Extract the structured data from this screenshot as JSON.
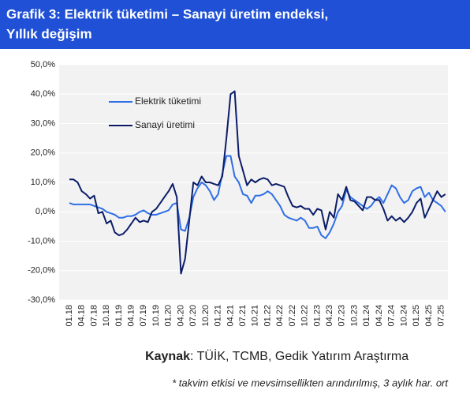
{
  "chart_data": {
    "type": "line",
    "title_lines": [
      "Grafik 3: Elektrik tüketimi – Sanayi üretim endeksi,",
      "Yıllık değişim"
    ],
    "categories": [
      "01.18",
      null,
      null,
      "04.18",
      null,
      null,
      "07.18",
      null,
      null,
      "10.18",
      null,
      null,
      "01.19",
      null,
      null,
      "04.19",
      null,
      null,
      "07.19",
      null,
      null,
      "10.19",
      null,
      null,
      "01.20",
      null,
      null,
      "04.20",
      null,
      null,
      "07.20",
      null,
      null,
      "10.20",
      null,
      null,
      "01.21",
      null,
      null,
      "04.21",
      null,
      null,
      "07.21",
      null,
      null,
      "10.21",
      null,
      null,
      "01.22",
      null,
      null,
      "04.22",
      null,
      null,
      "07.22",
      null,
      null,
      "10.22",
      null,
      null,
      "01.23",
      null,
      null,
      "04.23",
      null,
      null,
      "07.23",
      null,
      null,
      "10.23",
      null,
      null,
      "01.24",
      null,
      null,
      "04.24",
      null,
      null,
      "07.24",
      null,
      null,
      "10.24",
      null,
      null,
      "01.25",
      null,
      null,
      "04.25",
      null,
      null,
      "07.25",
      null
    ],
    "series": [
      {
        "name": "Elektrik tüketimi",
        "color": "#2f6fe6",
        "values": [
          3,
          2.5,
          2.5,
          2.5,
          2.5,
          2.5,
          2,
          1.5,
          1,
          0,
          -0.5,
          -1,
          -2,
          -2,
          -1.5,
          -1.5,
          -1,
          0,
          0.5,
          -0.5,
          -1,
          -1,
          -0.5,
          0,
          0.5,
          2.5,
          3,
          -6,
          -6.5,
          -2,
          5,
          8,
          10,
          9,
          7,
          4,
          6,
          13,
          19,
          19,
          12,
          10,
          6,
          5.5,
          3,
          5.5,
          5.5,
          6,
          7,
          6,
          4,
          2,
          -1,
          -2,
          -2.5,
          -3,
          -2,
          -3,
          -5.5,
          -5.5,
          -5,
          -8,
          -9,
          -7,
          -4,
          0,
          2,
          7.5,
          5,
          4,
          3,
          2,
          1,
          2,
          4,
          5,
          3,
          6,
          9,
          8,
          5,
          3,
          4,
          7,
          8,
          8.5,
          5,
          6.5,
          4,
          3,
          2,
          0
        ]
      },
      {
        "name": "Sanayi üretimi",
        "color": "#0c1d68",
        "values": [
          11,
          11,
          10,
          7,
          6,
          4.5,
          5.5,
          -0.5,
          0,
          -4,
          -3,
          -7,
          -8,
          -7.5,
          -6,
          -4,
          -2,
          -3.5,
          -3,
          -3.5,
          0,
          1,
          3,
          5,
          7,
          9.5,
          5,
          -21,
          -16,
          -3,
          10,
          9,
          12,
          10,
          10,
          9.5,
          9,
          12,
          25,
          40,
          41,
          19,
          14,
          9,
          11,
          10,
          11,
          11.5,
          11,
          9,
          9.5,
          9,
          8.5,
          5,
          2,
          1.5,
          2,
          1,
          1,
          -1,
          1,
          0.5,
          -6,
          0,
          -2,
          6,
          4,
          8.5,
          4,
          3.5,
          2,
          0.5,
          5,
          5,
          4,
          4,
          1,
          -3,
          -1.5,
          -3,
          -2,
          -3.5,
          -2,
          0,
          3,
          4.5,
          -2,
          1,
          4,
          7,
          5,
          6
        ]
      }
    ],
    "ylim": [
      -30,
      50
    ],
    "yticks": [
      {
        "value": -30,
        "label": "-30,0%"
      },
      {
        "value": -20,
        "label": "-20,0%"
      },
      {
        "value": -10,
        "label": "-10,0%"
      },
      {
        "value": 0,
        "label": "0,0%"
      },
      {
        "value": 10,
        "label": "10,0%"
      },
      {
        "value": 20,
        "label": "20,0%"
      },
      {
        "value": 30,
        "label": "30,0%"
      },
      {
        "value": 40,
        "label": "40,0%"
      },
      {
        "value": 50,
        "label": "50,0%"
      }
    ],
    "grid": true,
    "source_label": "Kaynak",
    "source_text": ": TÜİK, TCMB, Gedik Yatırım Araştırma",
    "note": "* takvim etkisi ve mevsimsellikten arındırılmış, 3 aylık har. ort"
  }
}
